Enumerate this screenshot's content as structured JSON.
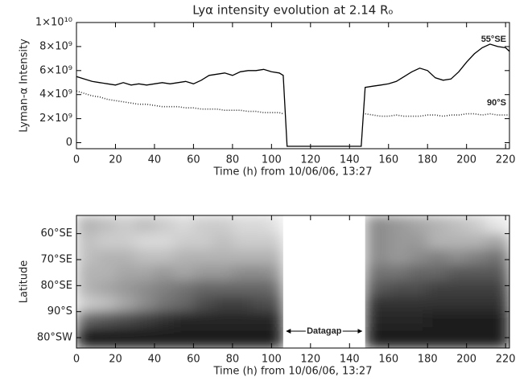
{
  "chart_data": [
    {
      "type": "line",
      "title": "Lyα intensity evolution at 2.14 Rₒ",
      "y_label": "Lyman-α Intensity",
      "x_label": "Time (h) from 10/06/06, 13:27",
      "x": [
        0,
        4,
        8,
        12,
        16,
        20,
        24,
        28,
        32,
        36,
        40,
        44,
        48,
        52,
        56,
        60,
        64,
        68,
        72,
        76,
        80,
        84,
        88,
        92,
        96,
        100,
        104,
        106,
        108,
        146,
        148,
        152,
        156,
        160,
        164,
        168,
        172,
        176,
        180,
        184,
        188,
        192,
        196,
        200,
        204,
        208,
        212,
        216,
        220,
        222
      ],
      "series": [
        {
          "name": "55°SE",
          "color": "#000000",
          "style": "solid",
          "values": [
            5500000000,
            5300000000,
            5100000000,
            5000000000,
            4900000000,
            4800000000,
            5000000000,
            4800000000,
            4900000000,
            4800000000,
            4900000000,
            5000000000,
            4900000000,
            5000000000,
            5100000000,
            4900000000,
            5200000000,
            5600000000,
            5700000000,
            5800000000,
            5600000000,
            5900000000,
            6000000000,
            6000000000,
            6100000000,
            5900000000,
            5800000000,
            5600000000,
            -300000000,
            -300000000,
            4600000000,
            4700000000,
            4800000000,
            4900000000,
            5100000000,
            5500000000,
            5900000000,
            6200000000,
            6000000000,
            5400000000,
            5200000000,
            5300000000,
            5900000000,
            6700000000,
            7400000000,
            7900000000,
            8200000000,
            8000000000,
            7900000000,
            7600000000
          ]
        },
        {
          "name": "90°S",
          "color": "#333333",
          "style": "dotted",
          "values": [
            4300000000,
            4100000000,
            3900000000,
            3800000000,
            3600000000,
            3500000000,
            3400000000,
            3300000000,
            3200000000,
            3200000000,
            3100000000,
            3000000000,
            3000000000,
            3000000000,
            2900000000,
            2900000000,
            2800000000,
            2800000000,
            2800000000,
            2700000000,
            2700000000,
            2700000000,
            2600000000,
            2600000000,
            2500000000,
            2500000000,
            2500000000,
            2400000000,
            null,
            null,
            2400000000,
            2300000000,
            2200000000,
            2200000000,
            2300000000,
            2200000000,
            2200000000,
            2200000000,
            2300000000,
            2300000000,
            2200000000,
            2300000000,
            2300000000,
            2400000000,
            2400000000,
            2300000000,
            2400000000,
            2300000000,
            2300000000,
            2300000000
          ]
        }
      ],
      "xlim": [
        0,
        222
      ],
      "xticks": [
        0,
        20,
        40,
        60,
        80,
        100,
        120,
        140,
        160,
        180,
        200,
        220
      ],
      "ylim": [
        -500000000,
        10000000000
      ],
      "yticks": [
        0,
        {
          "value": 2000000000,
          "label": "2×10⁹"
        },
        {
          "value": 4000000000,
          "label": "4×10⁹"
        },
        {
          "value": 6000000000,
          "label": "6×10⁹"
        },
        {
          "value": 8000000000,
          "label": "8×10⁹"
        },
        {
          "value": 10000000000,
          "label": "1×10¹⁰"
        }
      ]
    },
    {
      "type": "heatmap",
      "y_label": "Latitude",
      "x_label": "Time (h) from 10/06/06, 13:27",
      "colormap": "grayscale",
      "annotation": "Datagap",
      "x_edges": [
        0,
        10,
        20,
        30,
        40,
        50,
        60,
        70,
        80,
        90,
        100,
        106,
        148,
        160,
        170,
        180,
        190,
        200,
        210,
        222
      ],
      "y_edges": [
        53,
        60,
        66,
        72,
        78,
        84,
        90,
        96,
        104
      ],
      "values": [
        [
          0.7,
          0.75,
          0.8,
          0.75,
          0.8,
          0.85,
          0.8,
          0.8,
          0.85,
          0.85,
          0.9,
          null,
          0.55,
          0.6,
          0.65,
          0.7,
          0.75,
          0.8,
          0.9
        ],
        [
          0.75,
          0.8,
          0.8,
          0.85,
          0.85,
          0.8,
          0.8,
          0.75,
          0.8,
          0.8,
          0.8,
          null,
          0.55,
          0.6,
          0.6,
          0.7,
          0.7,
          0.7,
          0.65
        ],
        [
          0.75,
          0.7,
          0.7,
          0.75,
          0.75,
          0.7,
          0.7,
          0.7,
          0.7,
          0.7,
          0.7,
          null,
          0.55,
          0.6,
          0.55,
          0.5,
          0.55,
          0.5,
          0.45
        ],
        [
          0.7,
          0.7,
          0.65,
          0.65,
          0.6,
          0.65,
          0.6,
          0.6,
          0.55,
          0.55,
          0.6,
          null,
          0.45,
          0.45,
          0.4,
          0.4,
          0.35,
          0.35,
          0.35
        ],
        [
          0.7,
          0.65,
          0.6,
          0.55,
          0.5,
          0.45,
          0.4,
          0.4,
          0.4,
          0.4,
          0.45,
          null,
          0.35,
          0.3,
          0.3,
          0.25,
          0.25,
          0.25,
          0.25
        ],
        [
          0.8,
          0.75,
          0.65,
          0.55,
          0.45,
          0.4,
          0.3,
          0.25,
          0.25,
          0.3,
          0.3,
          null,
          0.2,
          0.2,
          0.2,
          0.2,
          0.2,
          0.2,
          0.2
        ],
        [
          0.4,
          0.35,
          0.3,
          0.25,
          0.2,
          0.15,
          0.15,
          0.15,
          0.15,
          0.15,
          0.15,
          null,
          0.15,
          0.15,
          0.15,
          0.12,
          0.12,
          0.12,
          0.12
        ],
        [
          0.12,
          0.12,
          0.1,
          0.1,
          0.1,
          0.1,
          0.1,
          0.1,
          0.1,
          0.1,
          0.1,
          null,
          0.1,
          0.1,
          0.1,
          0.1,
          0.1,
          0.1,
          0.1
        ]
      ],
      "xlim": [
        0,
        222
      ],
      "xticks": [
        0,
        20,
        40,
        60,
        80,
        100,
        120,
        140,
        160,
        180,
        200,
        220
      ],
      "ylim": [
        53,
        104
      ],
      "yticks": [
        {
          "value": 60,
          "label": "60°SE"
        },
        {
          "value": 70,
          "label": "70°SE"
        },
        {
          "value": 80,
          "label": "80°SE"
        },
        {
          "value": 90,
          "label": "90°S"
        },
        {
          "value": 100,
          "label": "80°SW"
        }
      ]
    }
  ]
}
